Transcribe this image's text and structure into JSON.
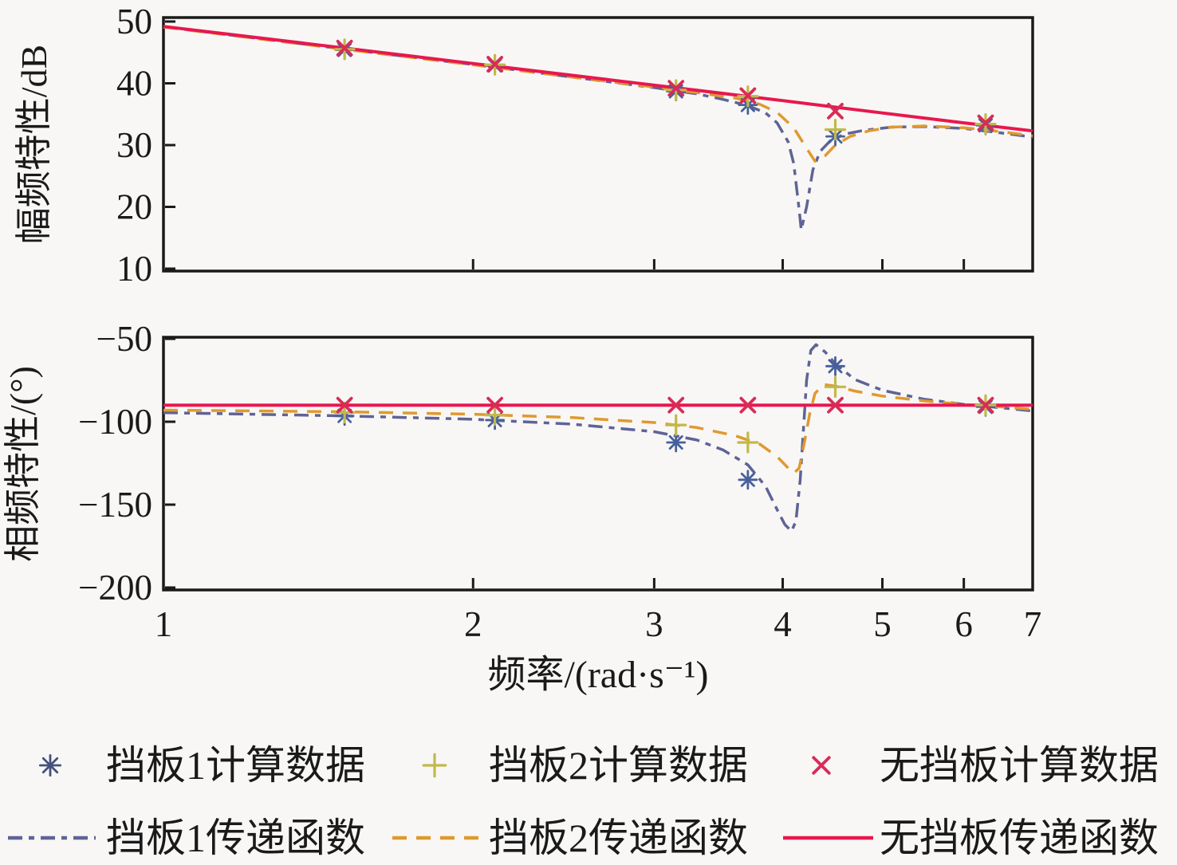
{
  "colors": {
    "background": "#f8f7f5",
    "axis": "#1a1a1a",
    "baffle1_line": "#5f6396",
    "baffle1_marker": "#47609c",
    "baffle2_line": "#e0992f",
    "baffle2_marker": "#c2b84a",
    "nobaffle_line": "#e8174f",
    "nobaffle_marker": "#d92b57"
  },
  "chart_data": {
    "type": "line",
    "x_scale": "log",
    "xlim": [
      1,
      7
    ],
    "x_ticks": [
      1,
      2,
      3,
      4,
      5,
      6,
      7
    ],
    "x_tick_labels": [
      "1",
      "2",
      "3",
      "4",
      "5",
      "6",
      "7"
    ],
    "x_label": "频率/(rad·s⁻¹)",
    "grid": false,
    "subplots": [
      {
        "id": "magnitude",
        "y_label": "幅频特性/dB",
        "ylim": [
          10,
          50
        ],
        "y_ticks": [
          50,
          40,
          30,
          20,
          10
        ],
        "y_tick_labels": [
          "50",
          "40",
          "30",
          "20",
          "10"
        ],
        "lines": [
          {
            "id": "baffle1-transfer",
            "label": "挡板1传递函数",
            "style": "dashdot",
            "color": "#5f6396",
            "points": [
              [
                1,
                49.15
              ],
              [
                1.5,
                45.55
              ],
              [
                2,
                43.05
              ],
              [
                2.5,
                41.0
              ],
              [
                3,
                39.3
              ],
              [
                3.3,
                38.3
              ],
              [
                3.5,
                37.4
              ],
              [
                3.7,
                36.4
              ],
              [
                3.85,
                35.2
              ],
              [
                3.95,
                33.6
              ],
              [
                4.05,
                30.5
              ],
              [
                4.1,
                27.0
              ],
              [
                4.15,
                19.5
              ],
              [
                4.17,
                16.3
              ],
              [
                4.22,
                20.0
              ],
              [
                4.28,
                26.0
              ],
              [
                4.35,
                29.0
              ],
              [
                4.45,
                30.7
              ],
              [
                4.6,
                31.8
              ],
              [
                4.8,
                32.4
              ],
              [
                5.1,
                32.9
              ],
              [
                5.5,
                33.0
              ],
              [
                6,
                32.7
              ],
              [
                6.5,
                32.0
              ],
              [
                7,
                31.3
              ]
            ]
          },
          {
            "id": "baffle2-transfer",
            "label": "挡板2传递函数",
            "style": "dashed",
            "color": "#e0992f",
            "points": [
              [
                1,
                49.1
              ],
              [
                1.5,
                45.5
              ],
              [
                2,
                43.0
              ],
              [
                2.5,
                41.0
              ],
              [
                3,
                39.4
              ],
              [
                3.3,
                38.5
              ],
              [
                3.6,
                37.6
              ],
              [
                3.8,
                36.6
              ],
              [
                3.95,
                35.3
              ],
              [
                4.1,
                32.8
              ],
              [
                4.2,
                30.0
              ],
              [
                4.3,
                27.4
              ],
              [
                4.4,
                28.3
              ],
              [
                4.5,
                30.0
              ],
              [
                4.65,
                31.4
              ],
              [
                4.85,
                32.3
              ],
              [
                5.1,
                32.9
              ],
              [
                5.5,
                33.1
              ],
              [
                6,
                32.8
              ],
              [
                6.5,
                32.2
              ],
              [
                7,
                31.5
              ]
            ]
          },
          {
            "id": "nobaffle-transfer",
            "label": "无挡板传递函数",
            "style": "solid",
            "color": "#e8174f",
            "points": [
              [
                1,
                49.2
              ],
              [
                1.5,
                45.7
              ],
              [
                2,
                43.2
              ],
              [
                3,
                39.7
              ],
              [
                4,
                37.2
              ],
              [
                5,
                35.2
              ],
              [
                6,
                33.6
              ],
              [
                7,
                32.3
              ]
            ]
          }
        ],
        "markers": [
          {
            "id": "baffle1-data",
            "label": "挡板1计算数据",
            "shape": "asterisk",
            "color": "#47609c",
            "points": [
              [
                1.5,
                45.4
              ],
              [
                2.1,
                42.9
              ],
              [
                3.15,
                38.7
              ],
              [
                3.7,
                36.5
              ],
              [
                4.5,
                31.4
              ],
              [
                6.3,
                33.2
              ]
            ]
          },
          {
            "id": "baffle2-data",
            "label": "挡板2计算数据",
            "shape": "plus",
            "color": "#c2b84a",
            "points": [
              [
                1.5,
                45.5
              ],
              [
                2.1,
                43.0
              ],
              [
                3.15,
                38.9
              ],
              [
                3.7,
                37.9
              ],
              [
                4.5,
                32.5
              ],
              [
                6.3,
                33.4
              ]
            ]
          },
          {
            "id": "nobaffle-data",
            "label": "无挡板计算数据",
            "shape": "x",
            "color": "#d92b57",
            "points": [
              [
                1.5,
                45.7
              ],
              [
                2.1,
                43.1
              ],
              [
                3.15,
                39.2
              ],
              [
                3.7,
                38.0
              ],
              [
                4.5,
                35.5
              ],
              [
                6.3,
                33.6
              ]
            ]
          }
        ]
      },
      {
        "id": "phase",
        "y_label": "相频特性/(°)",
        "ylim": [
          -200,
          -50
        ],
        "y_ticks": [
          -50,
          -100,
          -150,
          -200
        ],
        "y_tick_labels": [
          "−50",
          "−100",
          "−150",
          "−200"
        ],
        "lines": [
          {
            "id": "baffle1-transfer",
            "label": "挡板1传递函数",
            "style": "dashdot",
            "color": "#5f6396",
            "points": [
              [
                1,
                -94.5
              ],
              [
                1.5,
                -96.5
              ],
              [
                2,
                -98.5
              ],
              [
                2.5,
                -101.5
              ],
              [
                3,
                -106
              ],
              [
                3.3,
                -111
              ],
              [
                3.5,
                -117
              ],
              [
                3.7,
                -126
              ],
              [
                3.85,
                -139
              ],
              [
                3.95,
                -153
              ],
              [
                4.02,
                -162
              ],
              [
                4.08,
                -166
              ],
              [
                4.12,
                -160
              ],
              [
                4.16,
                -135
              ],
              [
                4.19,
                -105
              ],
              [
                4.22,
                -75
              ],
              [
                4.26,
                -57
              ],
              [
                4.31,
                -53.5
              ],
              [
                4.4,
                -58
              ],
              [
                4.5,
                -65
              ],
              [
                4.7,
                -74.5
              ],
              [
                5,
                -81
              ],
              [
                5.5,
                -86.5
              ],
              [
                6,
                -89.5
              ],
              [
                6.5,
                -91.5
              ],
              [
                7,
                -93.5
              ]
            ]
          },
          {
            "id": "baffle2-transfer",
            "label": "挡板2传递函数",
            "style": "dashed",
            "color": "#e0992f",
            "points": [
              [
                1,
                -93
              ],
              [
                1.5,
                -94
              ],
              [
                2,
                -95.5
              ],
              [
                2.5,
                -97.5
              ],
              [
                3,
                -100.5
              ],
              [
                3.3,
                -103.5
              ],
              [
                3.6,
                -108.5
              ],
              [
                3.8,
                -113.5
              ],
              [
                3.95,
                -121
              ],
              [
                4.05,
                -128
              ],
              [
                4.1,
                -131
              ],
              [
                4.15,
                -128
              ],
              [
                4.2,
                -112
              ],
              [
                4.25,
                -95
              ],
              [
                4.3,
                -83
              ],
              [
                4.38,
                -77.5
              ],
              [
                4.5,
                -78.5
              ],
              [
                4.7,
                -81.5
              ],
              [
                5,
                -84.5
              ],
              [
                5.5,
                -87.5
              ],
              [
                6,
                -89.5
              ],
              [
                6.5,
                -91
              ],
              [
                7,
                -92.5
              ]
            ]
          },
          {
            "id": "nobaffle-transfer",
            "label": "无挡板传递函数",
            "style": "solid",
            "color": "#e8174f",
            "points": [
              [
                1,
                -90
              ],
              [
                7,
                -90
              ]
            ]
          }
        ],
        "markers": [
          {
            "id": "baffle1-data",
            "label": "挡板1计算数据",
            "shape": "asterisk",
            "color": "#47609c",
            "points": [
              [
                1.5,
                -96.5
              ],
              [
                2.1,
                -99
              ],
              [
                3.15,
                -112.5
              ],
              [
                3.7,
                -135
              ],
              [
                4.5,
                -66.5
              ],
              [
                6.3,
                -91
              ]
            ]
          },
          {
            "id": "baffle2-data",
            "label": "挡板2计算数据",
            "shape": "plus",
            "color": "#c2b84a",
            "points": [
              [
                1.5,
                -94.5
              ],
              [
                2.1,
                -96
              ],
              [
                3.15,
                -102
              ],
              [
                3.7,
                -112.5
              ],
              [
                4.5,
                -79
              ],
              [
                6.3,
                -90
              ]
            ]
          },
          {
            "id": "nobaffle-data",
            "label": "无挡板计算数据",
            "shape": "x",
            "color": "#d92b57",
            "points": [
              [
                1.5,
                -90
              ],
              [
                2.1,
                -90
              ],
              [
                3.15,
                -90
              ],
              [
                3.7,
                -90
              ],
              [
                4.5,
                -90
              ],
              [
                6.3,
                -90
              ]
            ]
          }
        ]
      }
    ]
  },
  "legend": {
    "rows": [
      {
        "items": [
          {
            "id": "baffle1-data",
            "type": "marker",
            "shape": "asterisk",
            "color": "#44517e",
            "label": "挡板1计算数据"
          },
          {
            "id": "baffle2-data",
            "type": "marker",
            "shape": "plus",
            "color": "#c2b84a",
            "label": "挡板2计算数据"
          },
          {
            "id": "nobaffle-data",
            "type": "marker",
            "shape": "x",
            "color": "#d92b57",
            "label": "无挡板计算数据"
          }
        ]
      },
      {
        "items": [
          {
            "id": "baffle1-transfer",
            "type": "line",
            "style": "dashdot",
            "color": "#5f6396",
            "label": "挡板1传递函数"
          },
          {
            "id": "baffle2-transfer",
            "type": "line",
            "style": "dashed",
            "color": "#e0992f",
            "label": "挡板2传递函数"
          },
          {
            "id": "nobaffle-transfer",
            "type": "line",
            "style": "solid",
            "color": "#e8174f",
            "label": "无挡板传递函数"
          }
        ]
      }
    ]
  }
}
